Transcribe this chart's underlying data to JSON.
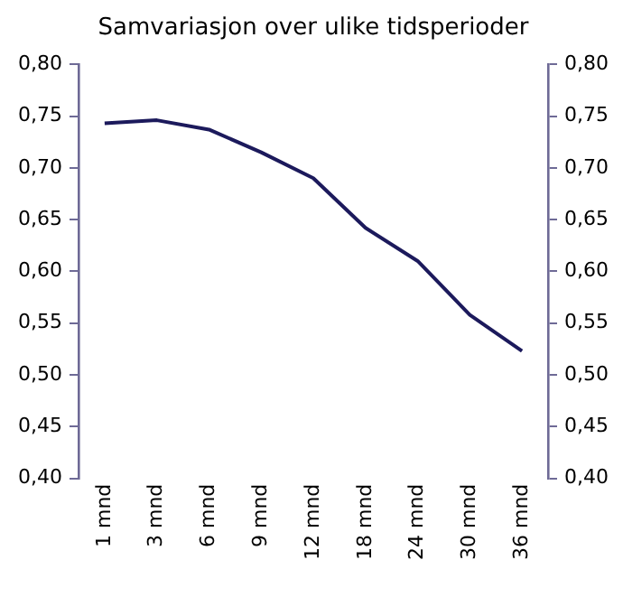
{
  "chart_data": {
    "type": "line",
    "title": "Samvariasjon over ulike tidsperioder",
    "categories": [
      "1 mnd",
      "3 mnd",
      "6 mnd",
      "9 mnd",
      "12 mnd",
      "18 mnd",
      "24 mnd",
      "30 mnd",
      "36 mnd"
    ],
    "series": [
      {
        "color": "#1c1a5c",
        "values": [
          0.743,
          0.746,
          0.737,
          0.715,
          0.69,
          0.642,
          0.61,
          0.558,
          0.523
        ]
      }
    ],
    "ylim": [
      0.4,
      0.8
    ],
    "yticks": [
      {
        "value": 0.4,
        "label": "0,40"
      },
      {
        "value": 0.45,
        "label": "0,45"
      },
      {
        "value": 0.5,
        "label": "0,50"
      },
      {
        "value": 0.55,
        "label": "0,55"
      },
      {
        "value": 0.6,
        "label": "0,60"
      },
      {
        "value": 0.65,
        "label": "0,65"
      },
      {
        "value": 0.7,
        "label": "0,70"
      },
      {
        "value": 0.75,
        "label": "0,75"
      },
      {
        "value": 0.8,
        "label": "0,80"
      }
    ],
    "y2lim": [
      0.4,
      0.8
    ],
    "y2ticks": [
      {
        "value": 0.4,
        "label": "0,40"
      },
      {
        "value": 0.45,
        "label": "0,45"
      },
      {
        "value": 0.5,
        "label": "0,50"
      },
      {
        "value": 0.55,
        "label": "0,55"
      },
      {
        "value": 0.6,
        "label": "0,60"
      },
      {
        "value": 0.65,
        "label": "0,65"
      },
      {
        "value": 0.7,
        "label": "0,70"
      },
      {
        "value": 0.75,
        "label": "0,75"
      },
      {
        "value": 0.8,
        "label": "0,80"
      }
    ],
    "grid": false,
    "legend": false,
    "marker": "none",
    "line_style": "solid"
  }
}
